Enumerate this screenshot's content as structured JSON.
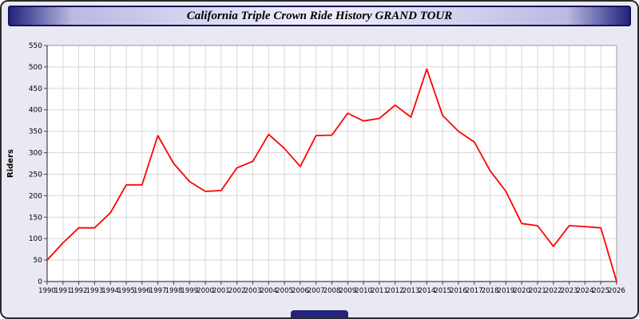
{
  "window": {
    "title": "California Triple Crown Ride History GRAND TOUR"
  },
  "colors": {
    "page_background": "#e9e9f3",
    "titlebar_navy": "#23237d",
    "plot_background": "#ffffff",
    "grid_color": "#d8d8d8",
    "axis_color": "#444444",
    "line_color": "#ff0000",
    "text_color": "#000000"
  },
  "chart_data": {
    "type": "line",
    "title": "California Triple Crown Ride History GRAND TOUR",
    "xlabel": "",
    "ylabel": "Riders",
    "ylim": [
      0,
      550
    ],
    "ytick_step": 50,
    "grid": true,
    "legend": "none",
    "x": [
      1990,
      1991,
      1992,
      1993,
      1994,
      1995,
      1996,
      1997,
      1998,
      1999,
      2000,
      2001,
      2002,
      2003,
      2004,
      2005,
      2006,
      2007,
      2008,
      2009,
      2010,
      2011,
      2012,
      2013,
      2014,
      2015,
      2016,
      2017,
      2018,
      2019,
      2020,
      2021,
      2022,
      2023,
      2024,
      2025,
      2026
    ],
    "series": [
      {
        "name": "Riders",
        "values": [
          50,
          90,
          125,
          125,
          160,
          225,
          225,
          340,
          275,
          233,
          210,
          212,
          265,
          280,
          343,
          310,
          268,
          340,
          341,
          392,
          374,
          380,
          411,
          383,
          495,
          387,
          350,
          325,
          258,
          210,
          135,
          130,
          82,
          130,
          128,
          125,
          0
        ]
      }
    ]
  }
}
